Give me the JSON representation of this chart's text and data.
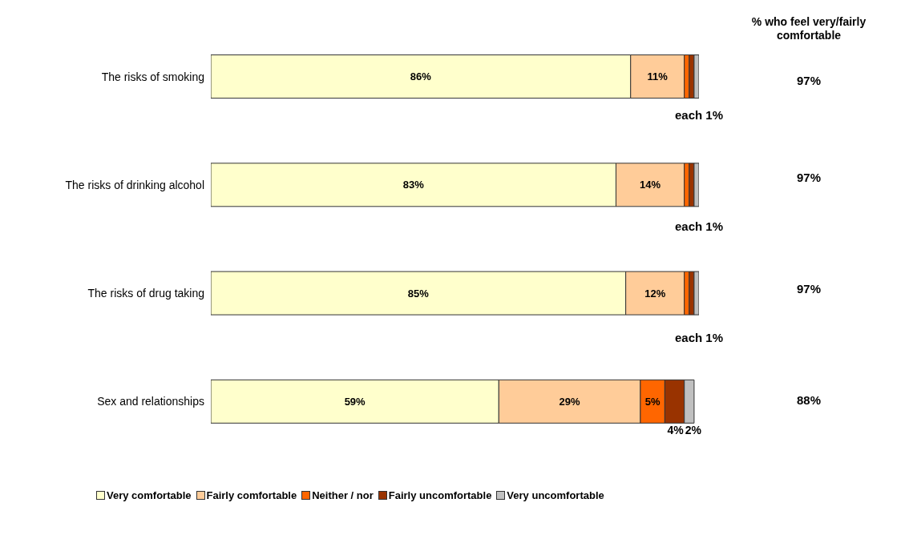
{
  "chart_data": {
    "type": "bar",
    "orientation": "horizontal",
    "stacked": true,
    "categories": [
      "The risks of smoking",
      "The risks of drinking alcohol",
      "The risks of drug taking",
      "Sex and relationships"
    ],
    "xlim": [
      0,
      100
    ],
    "tick_labels": "y",
    "grid": false,
    "legend": "bottom",
    "series": [
      {
        "name": "Very comfortable",
        "color": "#ffffcc",
        "values": [
          86,
          83,
          85,
          59
        ],
        "value_labels": [
          "86%",
          "83%",
          "85%",
          "59%"
        ]
      },
      {
        "name": "Fairly comfortable",
        "color": "#ffcc99",
        "values": [
          11,
          14,
          12,
          29
        ],
        "value_labels": [
          "11%",
          "14%",
          "12%",
          "29%"
        ]
      },
      {
        "name": "Neither / nor",
        "color": "#ff6600",
        "values": [
          1,
          1,
          1,
          5
        ],
        "value_labels": [
          null,
          null,
          null,
          "5%"
        ]
      },
      {
        "name": "Fairly uncomfortable",
        "color": "#993300",
        "values": [
          1,
          1,
          1,
          4
        ],
        "value_labels": [
          null,
          null,
          null,
          "4%"
        ]
      },
      {
        "name": "Very uncomfortable",
        "color": "#c0c0c0",
        "values": [
          1,
          1,
          1,
          2
        ],
        "value_labels": [
          null,
          null,
          null,
          "2%"
        ]
      }
    ],
    "annotations": [
      "% who feel very/fairly comfortable",
      "97%",
      "97%",
      "97%",
      "88%",
      "each 1%",
      "each 1%",
      "each 1%"
    ]
  }
}
